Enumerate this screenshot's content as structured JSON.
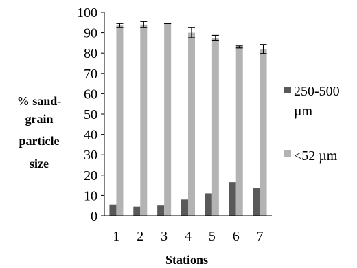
{
  "chart_data": {
    "type": "bar",
    "title": "",
    "xlabel": "Stations",
    "ylabel_lines": [
      "% sand-",
      "grain",
      "particle",
      "size"
    ],
    "categories": [
      "1",
      "2",
      "3",
      "4",
      "5",
      "6",
      "7"
    ],
    "ylim": [
      0,
      100
    ],
    "yticks": [
      0,
      10,
      20,
      30,
      40,
      50,
      60,
      70,
      80,
      90,
      100
    ],
    "grid": false,
    "legend_position": "right",
    "series": [
      {
        "name_lines": [
          "250-500",
          "µm"
        ],
        "color": "#595959",
        "values": [
          5.5,
          4.5,
          5,
          8,
          11,
          16.5,
          13.5
        ],
        "errors": [
          0,
          0,
          0,
          0,
          0,
          0,
          0
        ]
      },
      {
        "name_lines": [
          "<52 µm"
        ],
        "color": "#b3b3b3",
        "values": [
          93.5,
          94,
          94.5,
          90,
          87.5,
          83,
          82
        ],
        "errors": [
          1,
          1.5,
          0,
          2.5,
          1.2,
          0.5,
          2.2
        ]
      }
    ]
  }
}
